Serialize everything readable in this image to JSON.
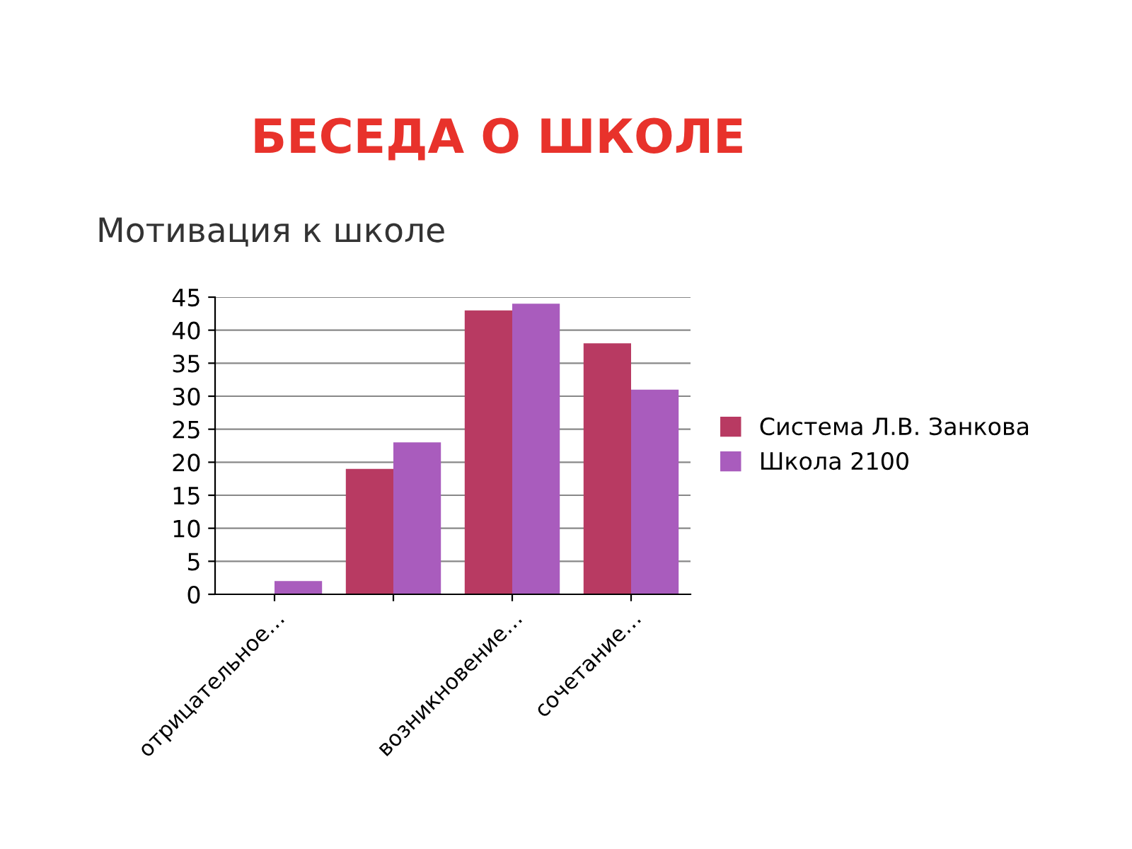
{
  "chart_data": {
    "type": "bar",
    "title": "БЕСЕДА О ШКОЛЕ",
    "subtitle": "Мотивация к школе",
    "categories": [
      "отрицательное…",
      null,
      "возникновение…",
      "сочетание…"
    ],
    "series": [
      {
        "name": "Система Л.В. Занкова",
        "color": "#b83a62",
        "values": [
          0,
          19,
          43,
          38
        ]
      },
      {
        "name": "Школа 2100",
        "color": "#a95cbd",
        "values": [
          2,
          23,
          44,
          31
        ]
      }
    ],
    "ylim": [
      0,
      45
    ],
    "yticks": [
      0,
      5,
      10,
      15,
      20,
      25,
      30,
      35,
      40,
      45
    ],
    "grid": "y",
    "legend": "right"
  }
}
